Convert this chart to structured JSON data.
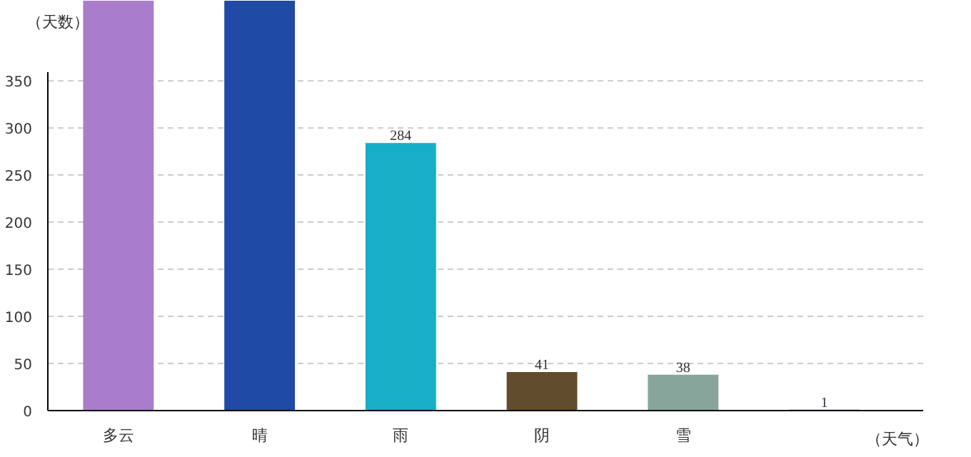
{
  "chart_data": {
    "type": "bar",
    "ylabel": "（天数）",
    "xlabel": "（天气）",
    "categories": [
      "多云",
      "晴",
      "雨",
      "阴",
      "雪",
      null
    ],
    "values": [
      435,
      435,
      284,
      41,
      38,
      1
    ],
    "value_labels": [
      null,
      null,
      "284",
      "41",
      "38",
      "1"
    ],
    "colors": [
      "#a97dcb",
      "#1f4aa5",
      "#17aec8",
      "#614c2d",
      "#88a59b",
      "#5a2d82"
    ],
    "ylim": [
      0,
      435
    ],
    "yticks": [
      0,
      50,
      100,
      150,
      200,
      250,
      300,
      350
    ],
    "grid": "y"
  }
}
